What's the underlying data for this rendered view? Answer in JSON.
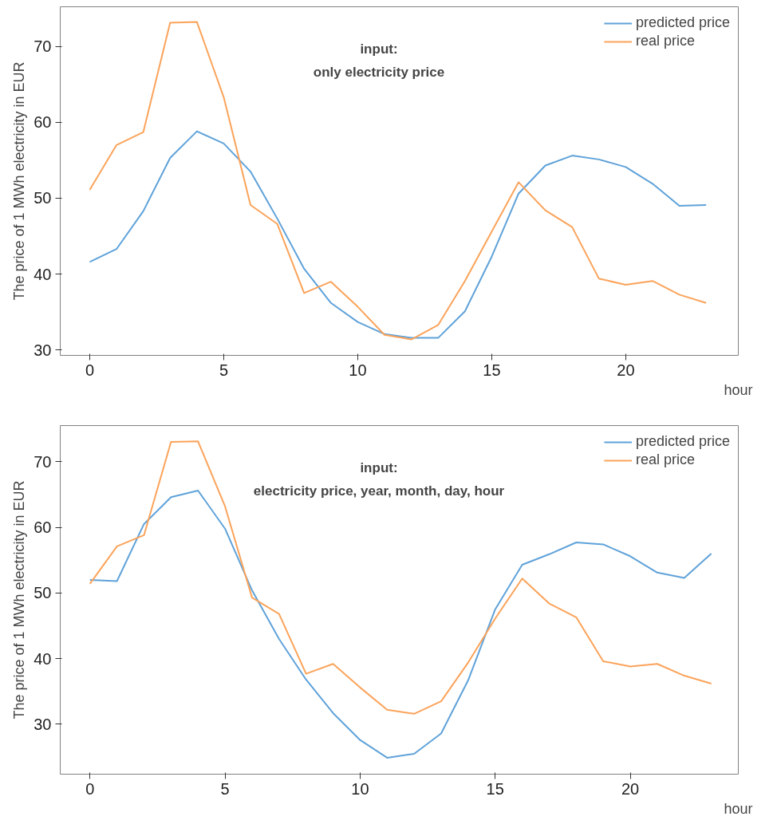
{
  "chart_data": [
    {
      "type": "line",
      "annotations": [
        "input:\nonly electricity price"
      ],
      "xlabel": "hour",
      "ylabel": "The price of 1 MWh electricity in EUR",
      "x": [
        0,
        1,
        2,
        3,
        4,
        5,
        6,
        7,
        8,
        9,
        10,
        11,
        12,
        13,
        14,
        15,
        16,
        17,
        18,
        19,
        20,
        21,
        22,
        23
      ],
      "series": [
        {
          "name": "predicted price",
          "color": "#5fa2d9",
          "values": [
            41.6,
            43.3,
            48.3,
            55.3,
            58.8,
            57.2,
            53.5,
            47.3,
            40.7,
            36.2,
            33.7,
            32.1,
            31.6,
            31.6,
            35.1,
            42.3,
            50.6,
            54.3,
            55.6,
            55.1,
            54.1,
            51.9,
            49.0,
            49.1
          ]
        },
        {
          "name": "real price",
          "color": "#fba35a",
          "values": [
            51.1,
            57.0,
            58.7,
            73.1,
            73.2,
            63.3,
            49.1,
            46.6,
            37.5,
            39.0,
            35.7,
            32.0,
            31.4,
            33.3,
            39.1,
            45.6,
            52.1,
            48.4,
            46.2,
            39.4,
            38.6,
            39.1,
            37.3,
            36.2
          ]
        }
      ],
      "xlim": [
        -1.1,
        24.2
      ],
      "ylim": [
        29.3,
        75.2
      ],
      "xticks": [
        0,
        5,
        10,
        15,
        20
      ],
      "yticks": [
        30,
        40,
        50,
        60,
        70
      ],
      "grid": false,
      "legend": "top right"
    },
    {
      "type": "line",
      "annotations": [
        "input:\nelectricity price, year, month, day, hour"
      ],
      "xlabel": "hour",
      "ylabel": "The price of 1 MWh electricity in EUR",
      "x": [
        0,
        1,
        2,
        3,
        4,
        5,
        6,
        7,
        8,
        9,
        10,
        11,
        12,
        13,
        14,
        15,
        16,
        17,
        18,
        19,
        20,
        21,
        22,
        23
      ],
      "series": [
        {
          "name": "predicted price",
          "color": "#5fa2d9",
          "values": [
            52.0,
            51.8,
            60.5,
            64.6,
            65.6,
            59.8,
            50.4,
            43.0,
            36.8,
            31.7,
            27.6,
            24.9,
            25.5,
            28.6,
            36.7,
            47.5,
            54.3,
            55.9,
            57.7,
            57.4,
            55.6,
            53.1,
            52.3,
            56.0
          ]
        },
        {
          "name": "real price",
          "color": "#fba35a",
          "values": [
            51.4,
            57.1,
            58.8,
            73.0,
            73.1,
            63.2,
            49.3,
            46.8,
            37.7,
            39.2,
            35.6,
            32.2,
            31.6,
            33.5,
            39.4,
            46.1,
            52.2,
            48.4,
            46.3,
            39.6,
            38.8,
            39.2,
            37.4,
            36.2
          ]
        }
      ],
      "xlim": [
        -1.1,
        24.0
      ],
      "ylim": [
        22.4,
        75.5
      ],
      "xticks": [
        0,
        5,
        10,
        15,
        20
      ],
      "yticks": [
        30,
        40,
        50,
        60,
        70
      ],
      "grid": false,
      "legend": "top right"
    }
  ]
}
